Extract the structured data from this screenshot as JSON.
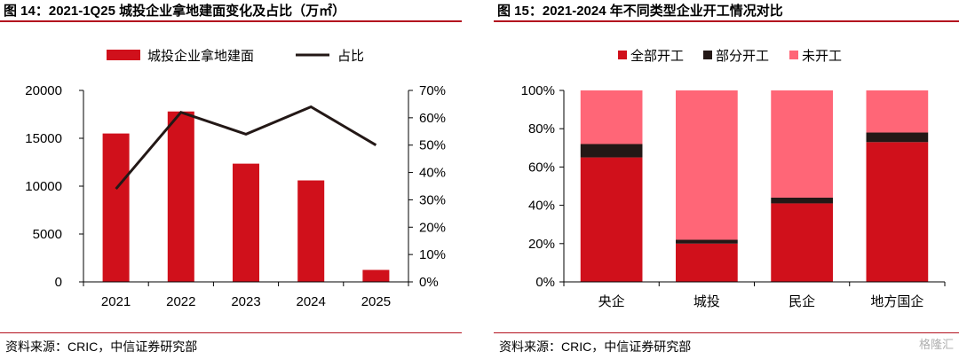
{
  "left": {
    "title": "图 14：2021-1Q25 城投企业拿地建面变化及占比（万㎡）",
    "source": "资料来源：CRIC，中信证券研究部",
    "chart_data": {
      "type": "bar",
      "categories": [
        "2021",
        "2022",
        "2023",
        "2024",
        "2025"
      ],
      "series": [
        {
          "name": "城投企业拿地建面",
          "kind": "bar",
          "axis": "left",
          "color": "#d0101b",
          "values": [
            15500,
            17800,
            12350,
            10600,
            1250
          ]
        },
        {
          "name": "占比",
          "kind": "line",
          "axis": "right",
          "color": "#231816",
          "values": [
            0.34,
            0.62,
            0.54,
            0.64,
            0.5
          ]
        }
      ],
      "y_left": {
        "min": 0,
        "max": 20000,
        "ticks": [
          "0",
          "5000",
          "10000",
          "15000",
          "20000"
        ]
      },
      "y_right": {
        "min": 0,
        "max": 0.7,
        "ticks": [
          "0%",
          "10%",
          "20%",
          "30%",
          "40%",
          "50%",
          "60%",
          "70%"
        ]
      },
      "legend_position": "top"
    }
  },
  "right": {
    "title": "图 15：2021-2024 年不同类型企业开工情况对比",
    "source": "资料来源：CRIC，中信证券研究部",
    "chart_data": {
      "type": "bar",
      "stacked": true,
      "categories": [
        "央企",
        "城投",
        "民企",
        "地方国企"
      ],
      "series": [
        {
          "name": "全部开工",
          "color": "#d0101b",
          "values": [
            0.65,
            0.2,
            0.41,
            0.73
          ]
        },
        {
          "name": "部分开工",
          "color": "#231816",
          "values": [
            0.07,
            0.02,
            0.03,
            0.05
          ]
        },
        {
          "name": "未开工",
          "color": "#ff6677",
          "values": [
            0.28,
            0.78,
            0.56,
            0.22
          ]
        }
      ],
      "y": {
        "min": 0,
        "max": 1,
        "ticks": [
          "0%",
          "20%",
          "40%",
          "60%",
          "80%",
          "100%"
        ]
      },
      "legend_position": "top"
    }
  },
  "watermark": "格隆汇"
}
